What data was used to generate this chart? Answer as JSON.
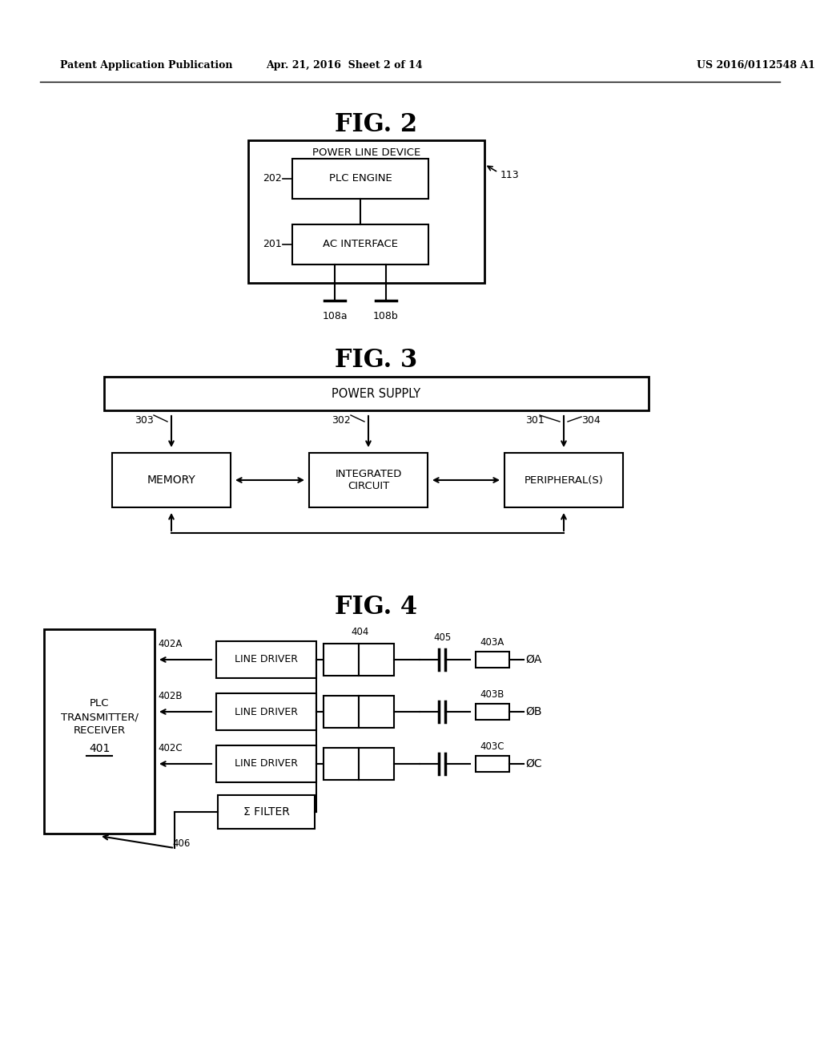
{
  "background_color": "#ffffff",
  "header_left": "Patent Application Publication",
  "header_center": "Apr. 21, 2016  Sheet 2 of 14",
  "header_right": "US 2016/0112548 A1",
  "fig2_title": "FIG. 2",
  "fig3_title": "FIG. 3",
  "fig4_title": "FIG. 4",
  "fig2": {
    "outer_box_label": "POWER LINE DEVICE",
    "inner_box1_label": "PLC ENGINE",
    "inner_box2_label": "AC INTERFACE",
    "label_202": "202",
    "label_201": "201",
    "label_113": "113",
    "label_108a": "108a",
    "label_108b": "108b"
  },
  "fig3": {
    "top_box_label": "POWER SUPPLY",
    "box1_label": "MEMORY",
    "box2_label": "INTEGRATED\nCIRCUIT",
    "box3_label": "PERIPHERAL(S)",
    "label_303": "303",
    "label_302": "302",
    "label_301": "301",
    "label_304": "304"
  },
  "fig4": {
    "left_box_label": "PLC\nTRANSMITTER/\nRECEIVER",
    "left_box_sublabel": "401",
    "driver1_label": "LINE DRIVER",
    "driver2_label": "LINE DRIVER",
    "driver3_label": "LINE DRIVER",
    "filter_label": "Σ FILTER",
    "label_402A": "402A",
    "label_402B": "402B",
    "label_402C": "402C",
    "label_406": "406",
    "label_404": "404",
    "label_405": "405",
    "label_403A": "403A",
    "label_403B": "403B",
    "label_403C": "403C",
    "phase_A": "ØA",
    "phase_B": "ØB",
    "phase_C": "ØC"
  }
}
